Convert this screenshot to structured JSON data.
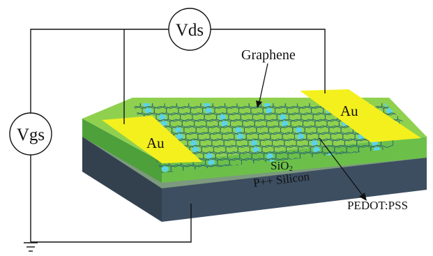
{
  "diagram": {
    "labels": {
      "vds": "Vds",
      "vgs": "Vgs",
      "graphene": "Graphene",
      "au_left": "Au",
      "au_right": "Au",
      "sio2": "SiO",
      "sio2_sub": "2",
      "silicon": "P++ Silicon",
      "pedot": "PEDOT:PSS"
    },
    "colors": {
      "top_green": "#8fd14f",
      "green_edge": "#6fb83a",
      "green_front": "#4ea03a",
      "silicon_front": "#3d4e61",
      "silicon_side": "#2f3d4d",
      "gold": "#f4f01e",
      "graphene_line": "#2d6b6b",
      "dot": "#5cd4e6",
      "wire": "#111111"
    }
  }
}
